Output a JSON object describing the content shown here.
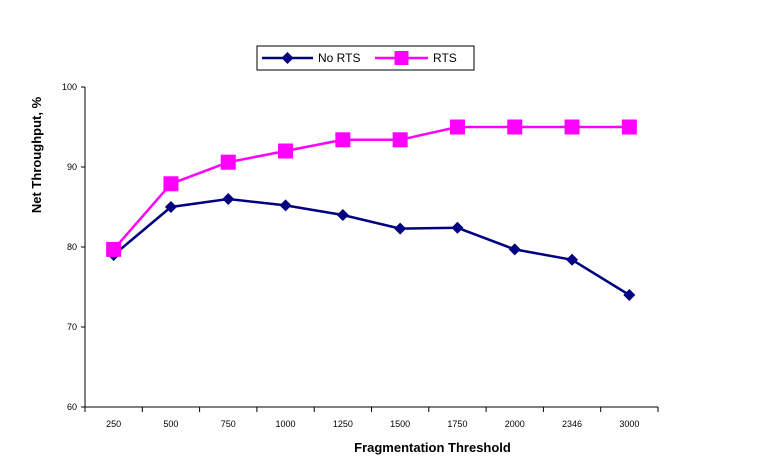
{
  "chart_data": {
    "type": "line",
    "title": "",
    "xlabel": "Fragmentation Threshold",
    "ylabel": "Net Throughput, %",
    "categories": [
      "250",
      "500",
      "750",
      "1000",
      "1250",
      "1500",
      "1750",
      "2000",
      "2346",
      "3000"
    ],
    "ylim": [
      60,
      100
    ],
    "yticks": [
      "60",
      "70",
      "80",
      "90",
      "100"
    ],
    "grid": false,
    "legend_position": "top",
    "series": [
      {
        "name": "No RTS",
        "values": [
          79,
          85,
          86,
          85.2,
          84,
          82.3,
          82.4,
          79.7,
          78.4,
          74
        ],
        "color": "#000080",
        "marker": "diamond"
      },
      {
        "name": "RTS",
        "values": [
          79.7,
          87.9,
          90.6,
          92,
          93.4,
          93.4,
          95,
          95,
          95,
          95
        ],
        "color": "#ff00ff",
        "marker": "square"
      }
    ]
  }
}
